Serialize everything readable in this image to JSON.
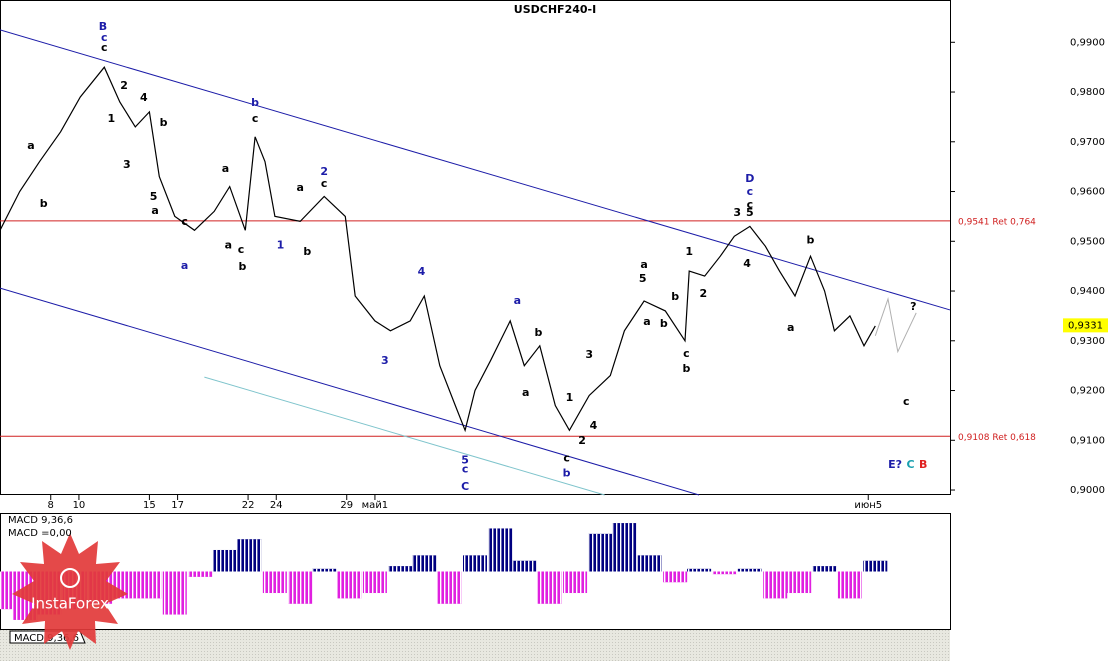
{
  "chart_data": {
    "type": "line",
    "title": "USDCHF240-I",
    "xlim": [
      4.4,
      71.8
    ],
    "ylim": [
      0.899,
      0.9985
    ],
    "xticks": [
      10,
      17,
      24,
      {
        "value": 31,
        "label": "май1"
      },
      8,
      15,
      22,
      29,
      {
        "value": 66,
        "label": "июн5"
      }
    ],
    "yticks": [
      {
        "value": 0.9,
        "label": "0,9000"
      },
      {
        "value": 0.91,
        "label": "0,9100"
      },
      {
        "value": 0.92,
        "label": "0,9200"
      },
      {
        "value": 0.93,
        "label": "0,9300"
      },
      {
        "value": 0.94,
        "label": "0,9400"
      },
      {
        "value": 0.95,
        "label": "0,9500"
      },
      {
        "value": 0.96,
        "label": "0,9600"
      },
      {
        "value": 0.97,
        "label": "0,9700"
      },
      {
        "value": 0.98,
        "label": "0,9800"
      },
      {
        "value": 0.99,
        "label": "0,9900"
      }
    ],
    "color": "#000000",
    "x": [
      4.4,
      5.8,
      7.2,
      8.7,
      10.1,
      11.8,
      12.9,
      14.0,
      15.0,
      15.7,
      16.8,
      18.2,
      19.6,
      20.7,
      21.8,
      22.5,
      23.2,
      23.9,
      25.7,
      27.4,
      28.9,
      29.6,
      31.0,
      32.1,
      33.5,
      34.5,
      35.6,
      36.7,
      37.4,
      38.1,
      39.2,
      40.6,
      41.6,
      42.7,
      43.8,
      44.8,
      46.2,
      47.7,
      48.7,
      50.1,
      51.6,
      53.0,
      53.3,
      54.4,
      55.5,
      56.5,
      57.6,
      58.7,
      59.7,
      60.8,
      61.9,
      62.9,
      63.6,
      64.7,
      65.7,
      66.5
    ],
    "values": [
      0.9522,
      0.96,
      0.966,
      0.972,
      0.979,
      0.985,
      0.978,
      0.973,
      0.976,
      0.963,
      0.955,
      0.9522,
      0.956,
      0.961,
      0.9522,
      0.971,
      0.966,
      0.955,
      0.954,
      0.959,
      0.955,
      0.939,
      0.934,
      0.932,
      0.934,
      0.939,
      0.925,
      0.917,
      0.912,
      0.92,
      0.926,
      0.934,
      0.925,
      0.929,
      0.917,
      0.912,
      0.919,
      0.923,
      0.932,
      0.938,
      0.936,
      0.93,
      0.944,
      0.943,
      0.947,
      0.951,
      0.953,
      0.949,
      0.944,
      0.939,
      0.947,
      0.94,
      0.932,
      0.935,
      0.929,
      0.933
    ],
    "projection": {
      "color": "#b0b0b0",
      "x": [
        66.5,
        67.4,
        68.1,
        69.4
      ],
      "values": [
        0.931,
        0.9384,
        0.9278,
        0.9356
      ]
    },
    "trend_lines": [
      {
        "color": "#1c1ca8",
        "x": [
          4.4,
          71.8
        ],
        "values": [
          0.9925,
          0.9362
        ]
      },
      {
        "color": "#1c1ca8",
        "x": [
          4.4,
          54.0
        ],
        "values": [
          0.9406,
          0.899
        ]
      },
      {
        "color": "#7fc4cc",
        "x": [
          18.9,
          47.3
        ],
        "values": [
          0.9227,
          0.899
        ]
      }
    ],
    "levels": [
      {
        "value": 0.9541,
        "label": "0,9541 Ret 0,764",
        "color": "#d02020"
      },
      {
        "value": 0.9108,
        "label": "0,9108 Ret 0,618",
        "color": "#d02020"
      }
    ],
    "current": {
      "value": 0.9331,
      "label": "0,9331",
      "color": "#ffff00"
    },
    "annotations": [
      {
        "text": "B",
        "x": 11.7,
        "y": 0.9931,
        "color": "#1c1ca8"
      },
      {
        "text": "c",
        "x": 11.8,
        "y": 0.9909,
        "color": "#1c1ca8"
      },
      {
        "text": "c",
        "x": 11.8,
        "y": 0.9889,
        "color": "#000000"
      },
      {
        "text": "2",
        "x": 13.2,
        "y": 0.9812,
        "color": "#000000"
      },
      {
        "text": "4",
        "x": 14.6,
        "y": 0.9788,
        "color": "#000000"
      },
      {
        "text": "1",
        "x": 12.3,
        "y": 0.9746,
        "color": "#000000"
      },
      {
        "text": "3",
        "x": 13.4,
        "y": 0.9653,
        "color": "#000000"
      },
      {
        "text": "b",
        "x": 16.0,
        "y": 0.9738,
        "color": "#000000"
      },
      {
        "text": "5",
        "x": 15.3,
        "y": 0.9589,
        "color": "#000000"
      },
      {
        "text": "a",
        "x": 15.4,
        "y": 0.9561,
        "color": "#000000"
      },
      {
        "text": "a",
        "x": 6.6,
        "y": 0.9692,
        "color": "#000000"
      },
      {
        "text": "b",
        "x": 7.5,
        "y": 0.9575,
        "color": "#000000"
      },
      {
        "text": "c",
        "x": 17.5,
        "y": 0.9539,
        "color": "#000000"
      },
      {
        "text": "a",
        "x": 17.5,
        "y": 0.945,
        "color": "#1c1ca8"
      },
      {
        "text": "b",
        "x": 22.5,
        "y": 0.9778,
        "color": "#1c1ca8"
      },
      {
        "text": "c",
        "x": 22.5,
        "y": 0.9746,
        "color": "#000000"
      },
      {
        "text": "a",
        "x": 20.4,
        "y": 0.9645,
        "color": "#000000"
      },
      {
        "text": "a",
        "x": 20.6,
        "y": 0.9492,
        "color": "#000000"
      },
      {
        "text": "c",
        "x": 21.5,
        "y": 0.9482,
        "color": "#000000"
      },
      {
        "text": "b",
        "x": 21.6,
        "y": 0.9448,
        "color": "#000000"
      },
      {
        "text": "1",
        "x": 24.3,
        "y": 0.9492,
        "color": "#1c1ca8"
      },
      {
        "text": "b",
        "x": 26.2,
        "y": 0.9478,
        "color": "#000000"
      },
      {
        "text": "a",
        "x": 25.7,
        "y": 0.9607,
        "color": "#000000"
      },
      {
        "text": "2",
        "x": 27.4,
        "y": 0.9639,
        "color": "#1c1ca8"
      },
      {
        "text": "c",
        "x": 27.4,
        "y": 0.9615,
        "color": "#000000"
      },
      {
        "text": "4",
        "x": 34.3,
        "y": 0.9438,
        "color": "#1c1ca8"
      },
      {
        "text": "3",
        "x": 31.7,
        "y": 0.9259,
        "color": "#1c1ca8"
      },
      {
        "text": "a",
        "x": 41.1,
        "y": 0.938,
        "color": "#1c1ca8"
      },
      {
        "text": "b",
        "x": 42.6,
        "y": 0.9316,
        "color": "#000000"
      },
      {
        "text": "a",
        "x": 41.7,
        "y": 0.9195,
        "color": "#000000"
      },
      {
        "text": "5",
        "x": 37.4,
        "y": 0.9059,
        "color": "#1c1ca8"
      },
      {
        "text": "c",
        "x": 37.4,
        "y": 0.9041,
        "color": "#1c1ca8"
      },
      {
        "text": "C",
        "x": 37.4,
        "y": 0.9006,
        "color": "#1c1ca8"
      },
      {
        "text": "1",
        "x": 44.8,
        "y": 0.9185,
        "color": "#000000"
      },
      {
        "text": "3",
        "x": 46.2,
        "y": 0.9271,
        "color": "#000000"
      },
      {
        "text": "4",
        "x": 46.5,
        "y": 0.9129,
        "color": "#000000"
      },
      {
        "text": "2",
        "x": 45.7,
        "y": 0.9099,
        "color": "#000000"
      },
      {
        "text": "c",
        "x": 44.6,
        "y": 0.9063,
        "color": "#000000"
      },
      {
        "text": "b",
        "x": 44.6,
        "y": 0.9033,
        "color": "#1c1ca8"
      },
      {
        "text": "a",
        "x": 50.1,
        "y": 0.9452,
        "color": "#000000"
      },
      {
        "text": "5",
        "x": 50.0,
        "y": 0.9424,
        "color": "#000000"
      },
      {
        "text": "a",
        "x": 50.3,
        "y": 0.9338,
        "color": "#000000"
      },
      {
        "text": "b",
        "x": 51.5,
        "y": 0.9334,
        "color": "#000000"
      },
      {
        "text": "b",
        "x": 52.3,
        "y": 0.9388,
        "color": "#000000"
      },
      {
        "text": "c",
        "x": 53.1,
        "y": 0.9273,
        "color": "#000000"
      },
      {
        "text": "b",
        "x": 53.1,
        "y": 0.9243,
        "color": "#000000"
      },
      {
        "text": "1",
        "x": 53.3,
        "y": 0.9478,
        "color": "#000000"
      },
      {
        "text": "2",
        "x": 54.3,
        "y": 0.9394,
        "color": "#000000"
      },
      {
        "text": "D",
        "x": 57.6,
        "y": 0.9625,
        "color": "#1c1ca8"
      },
      {
        "text": "c",
        "x": 57.6,
        "y": 0.9599,
        "color": "#1c1ca8"
      },
      {
        "text": "c",
        "x": 57.6,
        "y": 0.9573,
        "color": "#000000"
      },
      {
        "text": "3",
        "x": 56.7,
        "y": 0.9557,
        "color": "#000000"
      },
      {
        "text": "5",
        "x": 57.6,
        "y": 0.9557,
        "color": "#000000"
      },
      {
        "text": "4",
        "x": 57.4,
        "y": 0.9454,
        "color": "#000000"
      },
      {
        "text": "b",
        "x": 61.9,
        "y": 0.9502,
        "color": "#000000"
      },
      {
        "text": "a",
        "x": 60.5,
        "y": 0.9326,
        "color": "#000000"
      },
      {
        "text": "?",
        "x": 69.2,
        "y": 0.9368,
        "color": "#000000"
      },
      {
        "text": "c",
        "x": 68.7,
        "y": 0.9177,
        "color": "#000000"
      },
      {
        "text": "E?",
        "x": 67.9,
        "y": 0.905,
        "color": "#1c1ca8"
      },
      {
        "text": "C",
        "x": 69.0,
        "y": 0.905,
        "color": "#1aa0b0"
      },
      {
        "text": "B",
        "x": 69.9,
        "y": 0.905,
        "color": "#e02020"
      }
    ],
    "macd": {
      "title": "MACD 9,36,6",
      "value_label": "MACD =0,00",
      "tab_label": "MACD 9,36,6",
      "ylim": [
        -1.05,
        1.05
      ],
      "pos_color": "#000080",
      "neg_color": "#e020e0",
      "x": [
        4.4,
        6.2,
        7.9,
        9.7,
        11.5,
        13.3,
        15.0,
        16.8,
        18.6,
        20.4,
        22.1,
        23.9,
        25.7,
        27.4,
        29.2,
        31.0,
        32.8,
        34.5,
        36.3,
        38.1,
        39.9,
        41.6,
        43.4,
        45.2,
        47.0,
        48.7,
        50.5,
        52.3,
        54.0,
        55.8,
        57.6,
        59.4,
        61.1,
        62.9,
        64.7,
        66.5
      ],
      "values": [
        -0.7,
        -0.9,
        -0.8,
        -0.7,
        -0.6,
        -0.5,
        -0.5,
        -0.8,
        -0.1,
        0.4,
        0.6,
        -0.4,
        -0.6,
        0.05,
        -0.5,
        -0.4,
        0.1,
        0.3,
        -0.6,
        0.3,
        0.8,
        0.2,
        -0.6,
        -0.4,
        0.7,
        0.9,
        0.3,
        -0.2,
        0.05,
        -0.05,
        0.05,
        -0.5,
        -0.4,
        0.1,
        -0.5,
        0.2
      ]
    },
    "logo": "InstaForex"
  }
}
